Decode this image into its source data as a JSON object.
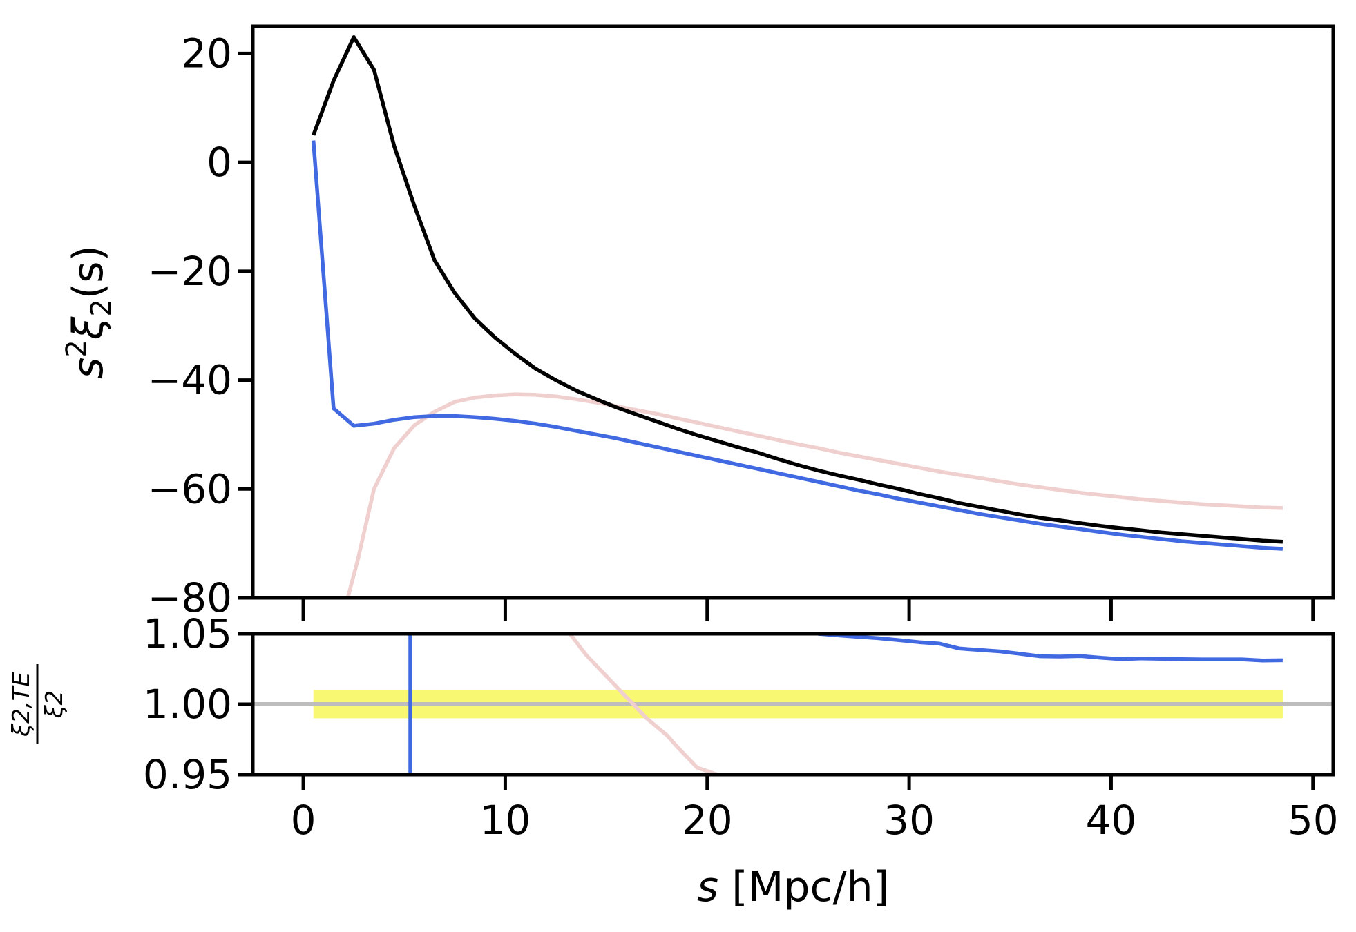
{
  "chart_data": [
    {
      "panel": "top",
      "type": "line",
      "ylabel_parts": {
        "base": "s",
        "sup": "2",
        "xi": "ξ",
        "sub": "2",
        "arg": "(s)"
      },
      "xlim": [
        -2.5,
        51
      ],
      "ylim": [
        -80,
        25
      ],
      "yticks": [
        20,
        0,
        -20,
        -40,
        -60,
        -80
      ],
      "ytick_labels": [
        "20",
        "0",
        "−20",
        "−40",
        "−60",
        "−80"
      ],
      "xticks": [
        0,
        10,
        20,
        30,
        40,
        50
      ],
      "series": [
        {
          "name": "black",
          "color": "#000000",
          "x": [
            0.5,
            1.5,
            2.5,
            3.5,
            4.5,
            5.5,
            6.5,
            7.5,
            8.5,
            9.5,
            10.5,
            11.5,
            12.5,
            13.5,
            14.5,
            15.5,
            16.5,
            17.5,
            18.5,
            19.5,
            20.5,
            21.5,
            22.5,
            23.5,
            24.5,
            25.5,
            26.5,
            27.5,
            28.5,
            29.5,
            30.5,
            31.5,
            32.5,
            33.5,
            34.5,
            35.5,
            36.5,
            37.5,
            38.5,
            39.5,
            40.5,
            41.5,
            42.5,
            43.5,
            44.5,
            45.5,
            46.5,
            47.5,
            48.5
          ],
          "values": [
            5,
            15,
            23,
            17,
            3,
            -8,
            -18,
            -24,
            -28.7,
            -32.2,
            -35.2,
            -37.9,
            -40,
            -41.9,
            -43.5,
            -45,
            -46.3,
            -47.6,
            -48.9,
            -50.1,
            -51.2,
            -52.3,
            -53.3,
            -54.5,
            -55.6,
            -56.6,
            -57.5,
            -58.3,
            -59.2,
            -60,
            -60.9,
            -61.7,
            -62.6,
            -63.3,
            -64,
            -64.7,
            -65.3,
            -65.8,
            -66.3,
            -66.8,
            -67.2,
            -67.6,
            -68,
            -68.3,
            -68.6,
            -68.9,
            -69.2,
            -69.5,
            -69.7
          ]
        },
        {
          "name": "blue",
          "color": "#4169e1",
          "x": [
            0.5,
            1.5,
            2.5,
            3.5,
            4.5,
            5.5,
            6.5,
            7.5,
            8.5,
            9.5,
            10.5,
            11.5,
            12.5,
            13.5,
            14.5,
            15.5,
            16.5,
            17.5,
            18.5,
            19.5,
            20.5,
            21.5,
            22.5,
            23.5,
            24.5,
            25.5,
            26.5,
            27.5,
            28.5,
            29.5,
            30.5,
            31.5,
            32.5,
            33.5,
            34.5,
            35.5,
            36.5,
            37.5,
            38.5,
            39.5,
            40.5,
            41.5,
            42.5,
            43.5,
            44.5,
            45.5,
            46.5,
            47.5,
            48.5
          ],
          "values": [
            4,
            -45.2,
            -48.4,
            -48,
            -47.3,
            -46.8,
            -46.6,
            -46.6,
            -46.8,
            -47.1,
            -47.5,
            -48,
            -48.6,
            -49.3,
            -50,
            -50.7,
            -51.5,
            -52.3,
            -53.1,
            -53.9,
            -54.7,
            -55.5,
            -56.3,
            -57.1,
            -57.9,
            -58.7,
            -59.5,
            -60.3,
            -61,
            -61.8,
            -62.5,
            -63.2,
            -63.9,
            -64.6,
            -65.2,
            -65.8,
            -66.4,
            -66.9,
            -67.4,
            -67.9,
            -68.4,
            -68.8,
            -69.2,
            -69.6,
            -69.9,
            -70.2,
            -70.5,
            -70.8,
            -71
          ]
        },
        {
          "name": "pink",
          "color": "#f0cfcf",
          "x": [
            2.2,
            2.7,
            3.5,
            4.5,
            5.5,
            6.5,
            7.5,
            8.5,
            9.5,
            10.5,
            11.5,
            12.5,
            13.5,
            14.5,
            15.5,
            16.5,
            17.5,
            18.5,
            19.5,
            20.5,
            21.5,
            22.5,
            23.5,
            24.5,
            25.5,
            26.5,
            27.5,
            28.5,
            29.5,
            30.5,
            31.5,
            32.5,
            33.5,
            34.5,
            35.5,
            36.5,
            37.5,
            38.5,
            39.5,
            40.5,
            41.5,
            42.5,
            43.5,
            44.5,
            45.5,
            46.5,
            47.5,
            48.5
          ],
          "values": [
            -80,
            -73,
            -60,
            -52.5,
            -48.3,
            -45.8,
            -44,
            -43.2,
            -42.8,
            -42.6,
            -42.7,
            -43,
            -43.5,
            -44.1,
            -44.8,
            -45.5,
            -46.2,
            -47,
            -47.8,
            -48.6,
            -49.4,
            -50.2,
            -51,
            -51.8,
            -52.5,
            -53.3,
            -54,
            -54.7,
            -55.4,
            -56.1,
            -56.8,
            -57.4,
            -58,
            -58.6,
            -59.2,
            -59.7,
            -60.2,
            -60.7,
            -61.1,
            -61.5,
            -61.9,
            -62.2,
            -62.5,
            -62.8,
            -63,
            -63.2,
            -63.4,
            -63.5
          ]
        }
      ]
    },
    {
      "panel": "bottom",
      "type": "line",
      "xlabel_italic": "s",
      "xlabel_rest": " [Mpc/h]",
      "ratio_num": "ξ2,TE",
      "ratio_den": "ξ2",
      "xlim": [
        -2.5,
        51
      ],
      "ylim": [
        0.95,
        1.05
      ],
      "yticks": [
        1.05,
        1.0,
        0.95
      ],
      "ytick_labels": [
        "1.05",
        "1.00",
        "0.95"
      ],
      "xticks": [
        0,
        10,
        20,
        30,
        40,
        50
      ],
      "xtick_labels": [
        "0",
        "10",
        "20",
        "30",
        "40",
        "50"
      ],
      "reference_line": 1.0,
      "band": {
        "x": [
          0.5,
          48.5
        ],
        "y": [
          0.99,
          1.01
        ],
        "color": "#f7f75a"
      },
      "series": [
        {
          "name": "blue",
          "color": "#4169e1",
          "x": [
            5.3,
            5.3
          ],
          "values": [
            0.95,
            1.05
          ],
          "continued_x": [
            25.5,
            26.5,
            27.5,
            28.5,
            29.5,
            30.5,
            31.5,
            32.5,
            33.5,
            34.5,
            35.5,
            36.5,
            37.5,
            38.5,
            39.5,
            40.5,
            41.5,
            42.5,
            43.5,
            44.5,
            45.5,
            46.5,
            47.5,
            48.5
          ],
          "continued_values": [
            1.05,
            1.0488,
            1.0478,
            1.0468,
            1.0455,
            1.044,
            1.043,
            1.0395,
            1.0385,
            1.0375,
            1.0358,
            1.034,
            1.0338,
            1.0342,
            1.033,
            1.032,
            1.0325,
            1.0322,
            1.032,
            1.0318,
            1.0318,
            1.0318,
            1.031,
            1.0312
          ]
        },
        {
          "name": "pink",
          "color": "#f0cfcf",
          "x": [
            13.2,
            14,
            15,
            16,
            17,
            18,
            18.5,
            19.5,
            20.5
          ],
          "values": [
            1.05,
            1.035,
            1.02,
            1.005,
            0.99,
            0.978,
            0.97,
            0.955,
            0.95
          ]
        }
      ]
    }
  ]
}
